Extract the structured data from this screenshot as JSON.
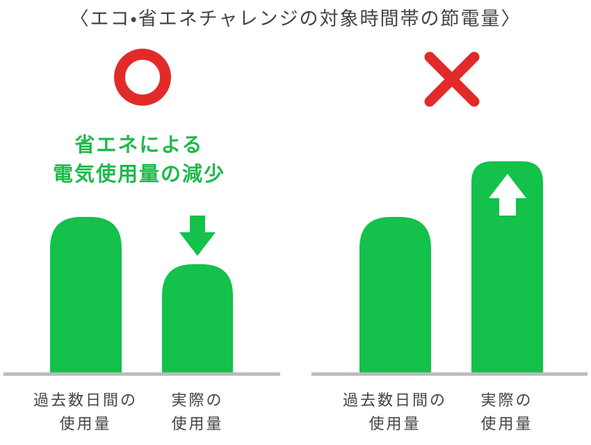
{
  "title": "〈エコ・省エネチャレンジの対象時間帯の節電量〉",
  "panels": [
    {
      "caption": [
        "省エネによる",
        "電気使用量の減少"
      ],
      "bars": [
        {
          "label": [
            "過去数日間の",
            "使用量"
          ]
        },
        {
          "label": [
            "実際の",
            "使用量"
          ]
        }
      ]
    },
    {
      "bars": [
        {
          "label": [
            "過去数日間の",
            "使用量"
          ]
        },
        {
          "label": [
            "実際の",
            "使用量"
          ]
        }
      ]
    }
  ]
}
